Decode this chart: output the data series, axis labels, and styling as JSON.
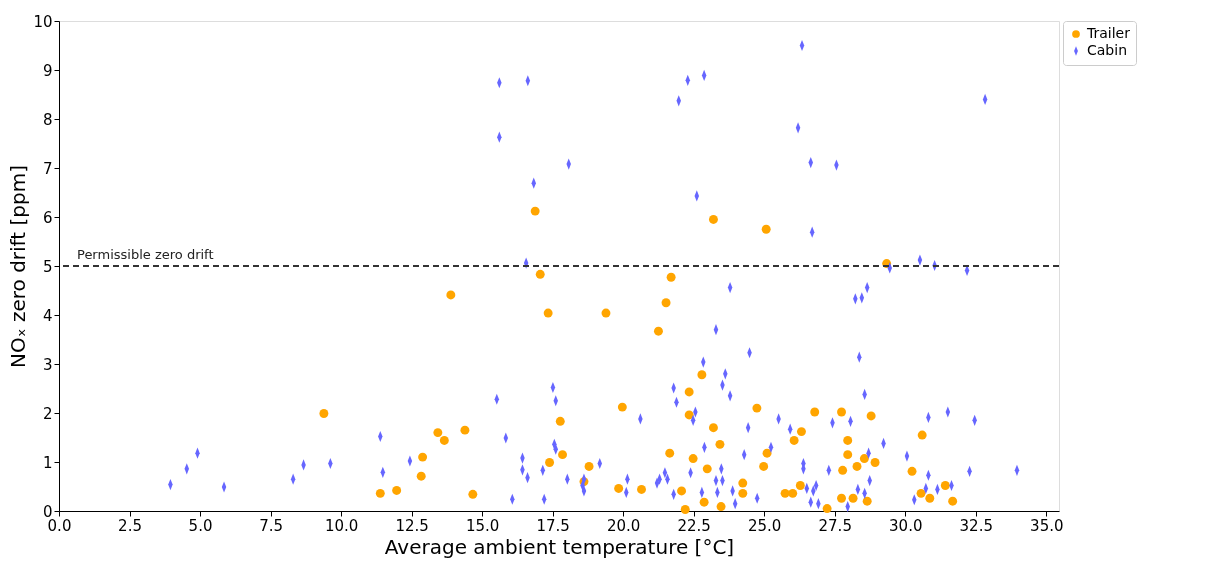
{
  "chart_data": {
    "type": "scatter",
    "xlabel": "Average ambient temperature [°C]",
    "ylabel": "NOₓ zero drift [ppm]",
    "xlim": [
      0,
      35.45
    ],
    "ylim": [
      0,
      10
    ],
    "xticks": [
      {
        "value": 0,
        "label": "0.0"
      },
      2.5,
      {
        "value": 5,
        "label": "5.0"
      },
      7.5,
      {
        "value": 10,
        "label": "10.0"
      },
      12.5,
      {
        "value": 15,
        "label": "15.0"
      },
      17.5,
      {
        "value": 20,
        "label": "20.0"
      },
      22.5,
      {
        "value": 25,
        "label": "25.0"
      },
      27.5,
      {
        "value": 30,
        "label": "30.0"
      },
      32.5,
      {
        "value": 35,
        "label": "35.0"
      }
    ],
    "yticks": [
      0,
      1,
      2,
      3,
      4,
      5,
      6,
      7,
      8,
      9,
      10
    ],
    "grid": false,
    "legend": "right",
    "ref_lines": [
      {
        "axis": "y",
        "value": 5,
        "label": "Permissible zero drift",
        "color": "#333333",
        "line_style": "dashed"
      }
    ],
    "series": [
      {
        "name": "Trailer",
        "color": "#ffa500",
        "marker": "circle",
        "x": [
          9.39,
          11.39,
          11.97,
          12.84,
          12.89,
          13.43,
          13.66,
          13.89,
          14.39,
          14.67,
          17.06,
          17.34,
          17.77,
          17.85,
          17.39,
          16.88,
          23.2,
          25.07,
          29.34,
          21.7,
          21.52,
          19.39,
          21.25,
          22.79,
          22.34,
          19.97,
          24.74,
          22.34,
          23.2,
          26.79,
          27.74,
          28.79,
          27.96,
          26.32,
          26.06,
          30.6,
          23.43,
          21.65,
          25.1,
          27.96,
          22.48,
          28.55,
          18.79,
          24.98,
          28.93,
          28.29,
          22.98,
          27.78,
          30.24,
          18.61,
          24.24,
          19.84,
          20.65,
          22.07,
          26.28,
          31.42,
          24.24,
          25.74,
          26.01,
          30.56,
          22.87,
          23.47,
          27.74,
          28.15,
          28.65,
          30.87,
          31.68,
          22.2,
          27.23
        ],
        "values": [
          1.99,
          0.36,
          0.42,
          0.71,
          1.1,
          1.6,
          1.44,
          4.41,
          1.65,
          0.34,
          4.83,
          4.04,
          1.83,
          1.15,
          0.99,
          6.12,
          5.95,
          5.75,
          5.05,
          4.77,
          4.25,
          4.04,
          3.67,
          2.78,
          2.43,
          2.12,
          2.1,
          1.96,
          1.7,
          2.02,
          2.02,
          1.94,
          1.44,
          1.62,
          1.44,
          1.55,
          1.36,
          1.18,
          1.18,
          1.15,
          1.07,
          1.07,
          0.91,
          0.91,
          0.99,
          0.91,
          0.86,
          0.83,
          0.81,
          0.6,
          0.57,
          0.46,
          0.44,
          0.41,
          0.52,
          0.52,
          0.36,
          0.36,
          0.36,
          0.36,
          0.18,
          0.09,
          0.26,
          0.26,
          0.2,
          0.26,
          0.2,
          0.03,
          0.05
        ]
      },
      {
        "name": "Cabin",
        "color": "#6666ff",
        "marker": "diamond",
        "x": [
          3.95,
          4.53,
          4.91,
          5.85,
          8.3,
          8.67,
          9.62,
          11.39,
          11.48,
          12.44,
          15.52,
          15.84,
          16.07,
          16.43,
          16.43,
          16.61,
          17.15,
          17.2,
          17.51,
          17.61,
          17.56,
          17.61,
          16.56,
          15.61,
          16.62,
          15.61,
          16.83,
          18.07,
          22.29,
          22.87,
          21.97,
          26.2,
          26.34,
          26.65,
          27.56,
          22.61,
          26.7,
          32.83,
          29.45,
          30.52,
          31.04,
          32.19,
          23.79,
          28.23,
          28.46,
          28.65,
          23.29,
          28.37,
          24.48,
          22.84,
          23.62,
          23.52,
          23.79,
          21.79,
          21.89,
          28.56,
          20.61,
          22.56,
          22.48,
          24.43,
          25.51,
          25.92,
          27.42,
          28.06,
          30.82,
          31.51,
          32.46,
          29.23,
          22.88,
          25.24,
          24.29,
          30.06,
          28.7,
          19.17,
          26.39,
          26.39,
          27.29,
          30.82,
          32.28,
          33.96,
          18.02,
          18.61,
          18.56,
          18.61,
          20.15,
          20.11,
          21.29,
          21.48,
          21.2,
          21.57,
          21.79,
          22.39,
          22.79,
          23.29,
          23.34,
          23.48,
          23.52,
          23.88,
          23.97,
          24.75,
          26.51,
          26.74,
          26.84,
          26.65,
          26.92,
          27.96,
          28.32,
          28.56,
          28.74,
          30.32,
          30.73,
          31.14,
          31.64
        ],
        "values": [
          0.54,
          0.86,
          1.18,
          0.49,
          0.65,
          0.94,
          0.97,
          1.52,
          0.79,
          1.02,
          2.28,
          1.49,
          0.24,
          1.08,
          0.84,
          0.68,
          0.83,
          0.24,
          2.52,
          2.25,
          1.36,
          1.26,
          5.06,
          8.74,
          8.78,
          7.63,
          6.69,
          7.08,
          8.79,
          8.89,
          8.37,
          7.82,
          9.5,
          7.11,
          7.06,
          6.43,
          5.69,
          8.4,
          4.96,
          5.12,
          5.01,
          4.91,
          4.56,
          4.33,
          4.35,
          4.56,
          3.7,
          3.14,
          3.23,
          3.04,
          2.8,
          2.57,
          2.35,
          2.51,
          2.22,
          2.38,
          1.88,
          2.02,
          1.85,
          1.7,
          1.88,
          1.67,
          1.8,
          1.83,
          1.91,
          2.02,
          1.85,
          1.38,
          1.3,
          1.3,
          1.15,
          1.12,
          1.18,
          0.97,
          0.97,
          0.86,
          0.83,
          0.73,
          0.81,
          0.83,
          0.65,
          0.65,
          0.52,
          0.41,
          0.65,
          0.38,
          0.65,
          0.78,
          0.57,
          0.65,
          0.34,
          0.78,
          0.38,
          0.62,
          0.38,
          0.86,
          0.62,
          0.41,
          0.15,
          0.26,
          0.46,
          0.41,
          0.52,
          0.18,
          0.15,
          0.09,
          0.44,
          0.36,
          0.62,
          0.23,
          0.46,
          0.44,
          0.52
        ]
      }
    ]
  }
}
